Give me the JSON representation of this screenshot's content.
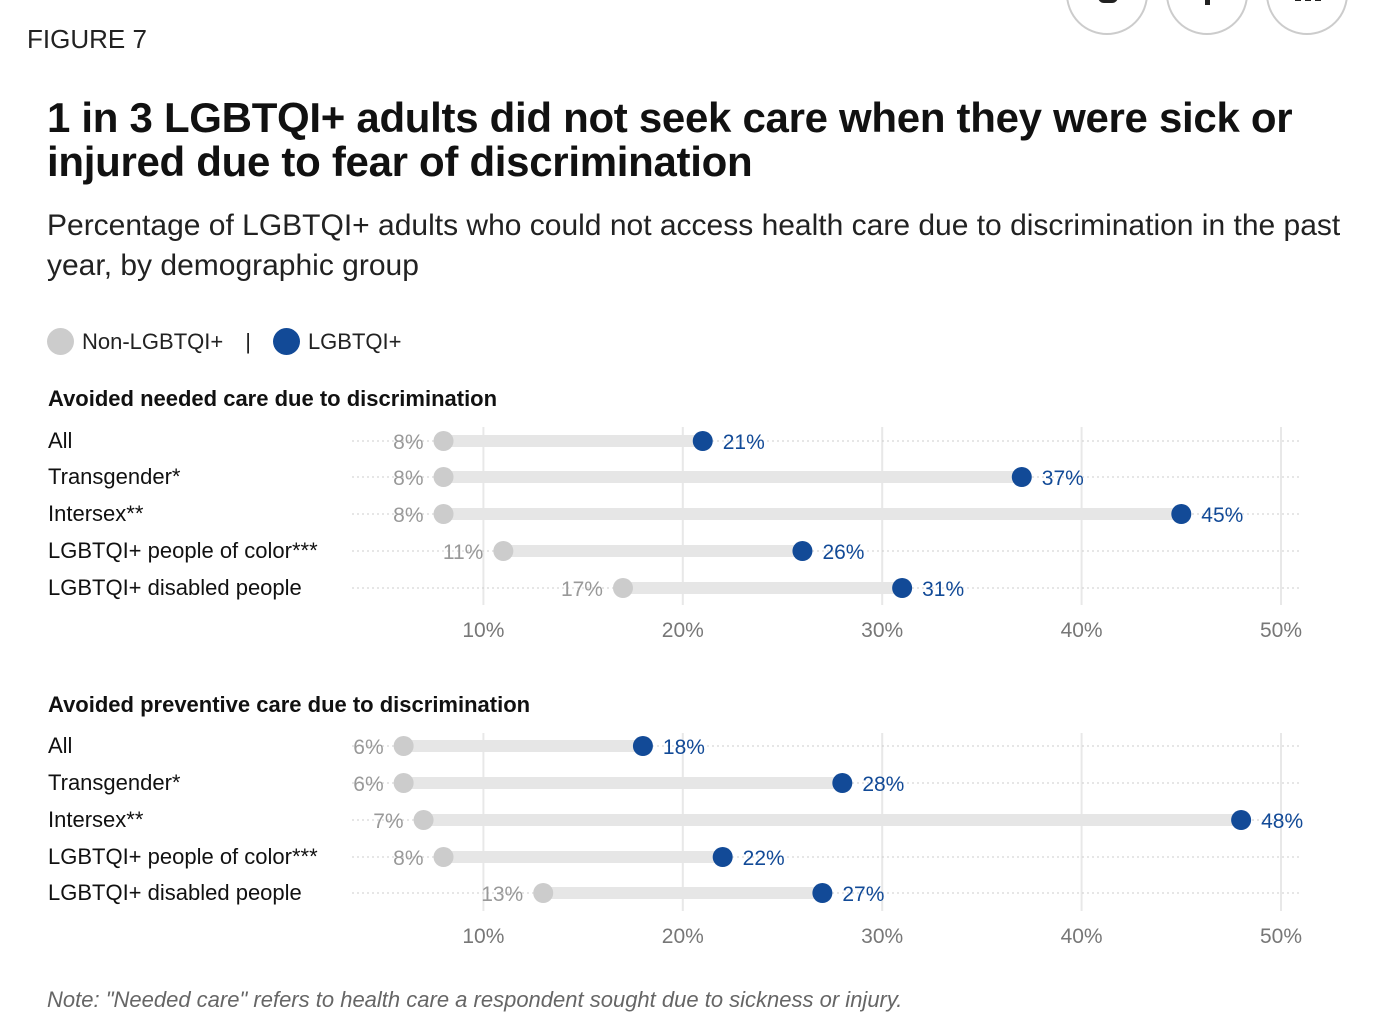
{
  "figure_label": "FIGURE 7",
  "social_icons": [
    "twitter-icon",
    "facebook-icon",
    "linkedin-icon"
  ],
  "colors": {
    "non_lgbtqi": "#cccccc",
    "lgbtqi": "#124a97",
    "bar": "#e6e6e6",
    "grey_text": "#999999"
  },
  "chart_data": {
    "type": "dumbbell",
    "title": "1 in 3 LGBTQI+ adults did not seek care when they were sick or injured due to fear of discrimination",
    "subtitle": "Percentage of LGBTQI+ adults who could not access health care due to discrimination in the past year, by demographic group",
    "legend": {
      "non": "Non-LGBTQI+",
      "sep": "|",
      "lgbt": "LGBTQI+",
      "placement": "top-left"
    },
    "xlim": [
      0,
      50
    ],
    "ticks": [
      10,
      20,
      30,
      40,
      50
    ],
    "tick_labels": [
      "10%",
      "20%",
      "30%",
      "40%",
      "50%"
    ],
    "panels": [
      {
        "title": "Avoided needed care due to discrimination",
        "categories": [
          "All",
          "Transgender*",
          "Intersex**",
          "LGBTQI+ people of color***",
          "LGBTQI+ disabled people"
        ],
        "series": [
          {
            "name": "Non-LGBTQI+",
            "values": [
              8,
              8,
              8,
              11,
              17
            ]
          },
          {
            "name": "LGBTQI+",
            "values": [
              21,
              37,
              45,
              26,
              31
            ]
          }
        ]
      },
      {
        "title": "Avoided preventive care due to discrimination",
        "categories": [
          "All",
          "Transgender*",
          "Intersex**",
          "LGBTQI+ people of color***",
          "LGBTQI+ disabled people"
        ],
        "series": [
          {
            "name": "Non-LGBTQI+",
            "values": [
              6,
              6,
              7,
              8,
              13
            ]
          },
          {
            "name": "LGBTQI+",
            "values": [
              18,
              28,
              48,
              22,
              27
            ]
          }
        ]
      }
    ],
    "grid": true
  },
  "note": "Note: \"Needed care\" refers to health care a respondent sought due to sickness or injury."
}
